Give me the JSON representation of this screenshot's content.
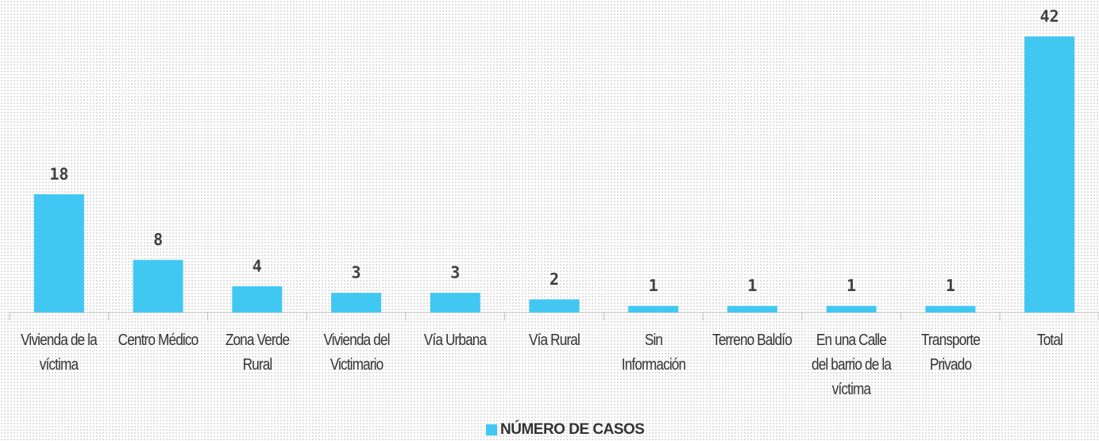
{
  "chart_data": {
    "type": "bar",
    "categories": [
      "Vivienda de la víctima",
      "Centro Médico",
      "Zona Verde Rural",
      "Vivienda del Victimario",
      "Vía Urbana",
      "Vía Rural",
      "Sin Información",
      "Terreno Baldío",
      "En una Calle del barrio de la víctima",
      "Transporte Privado",
      "Total"
    ],
    "series": [
      {
        "name": "NÚMERO DE CASOS",
        "color": "#41c8f2",
        "values": [
          18,
          8,
          4,
          3,
          3,
          2,
          1,
          1,
          1,
          1,
          42
        ]
      }
    ],
    "legend": "bottom"
  }
}
